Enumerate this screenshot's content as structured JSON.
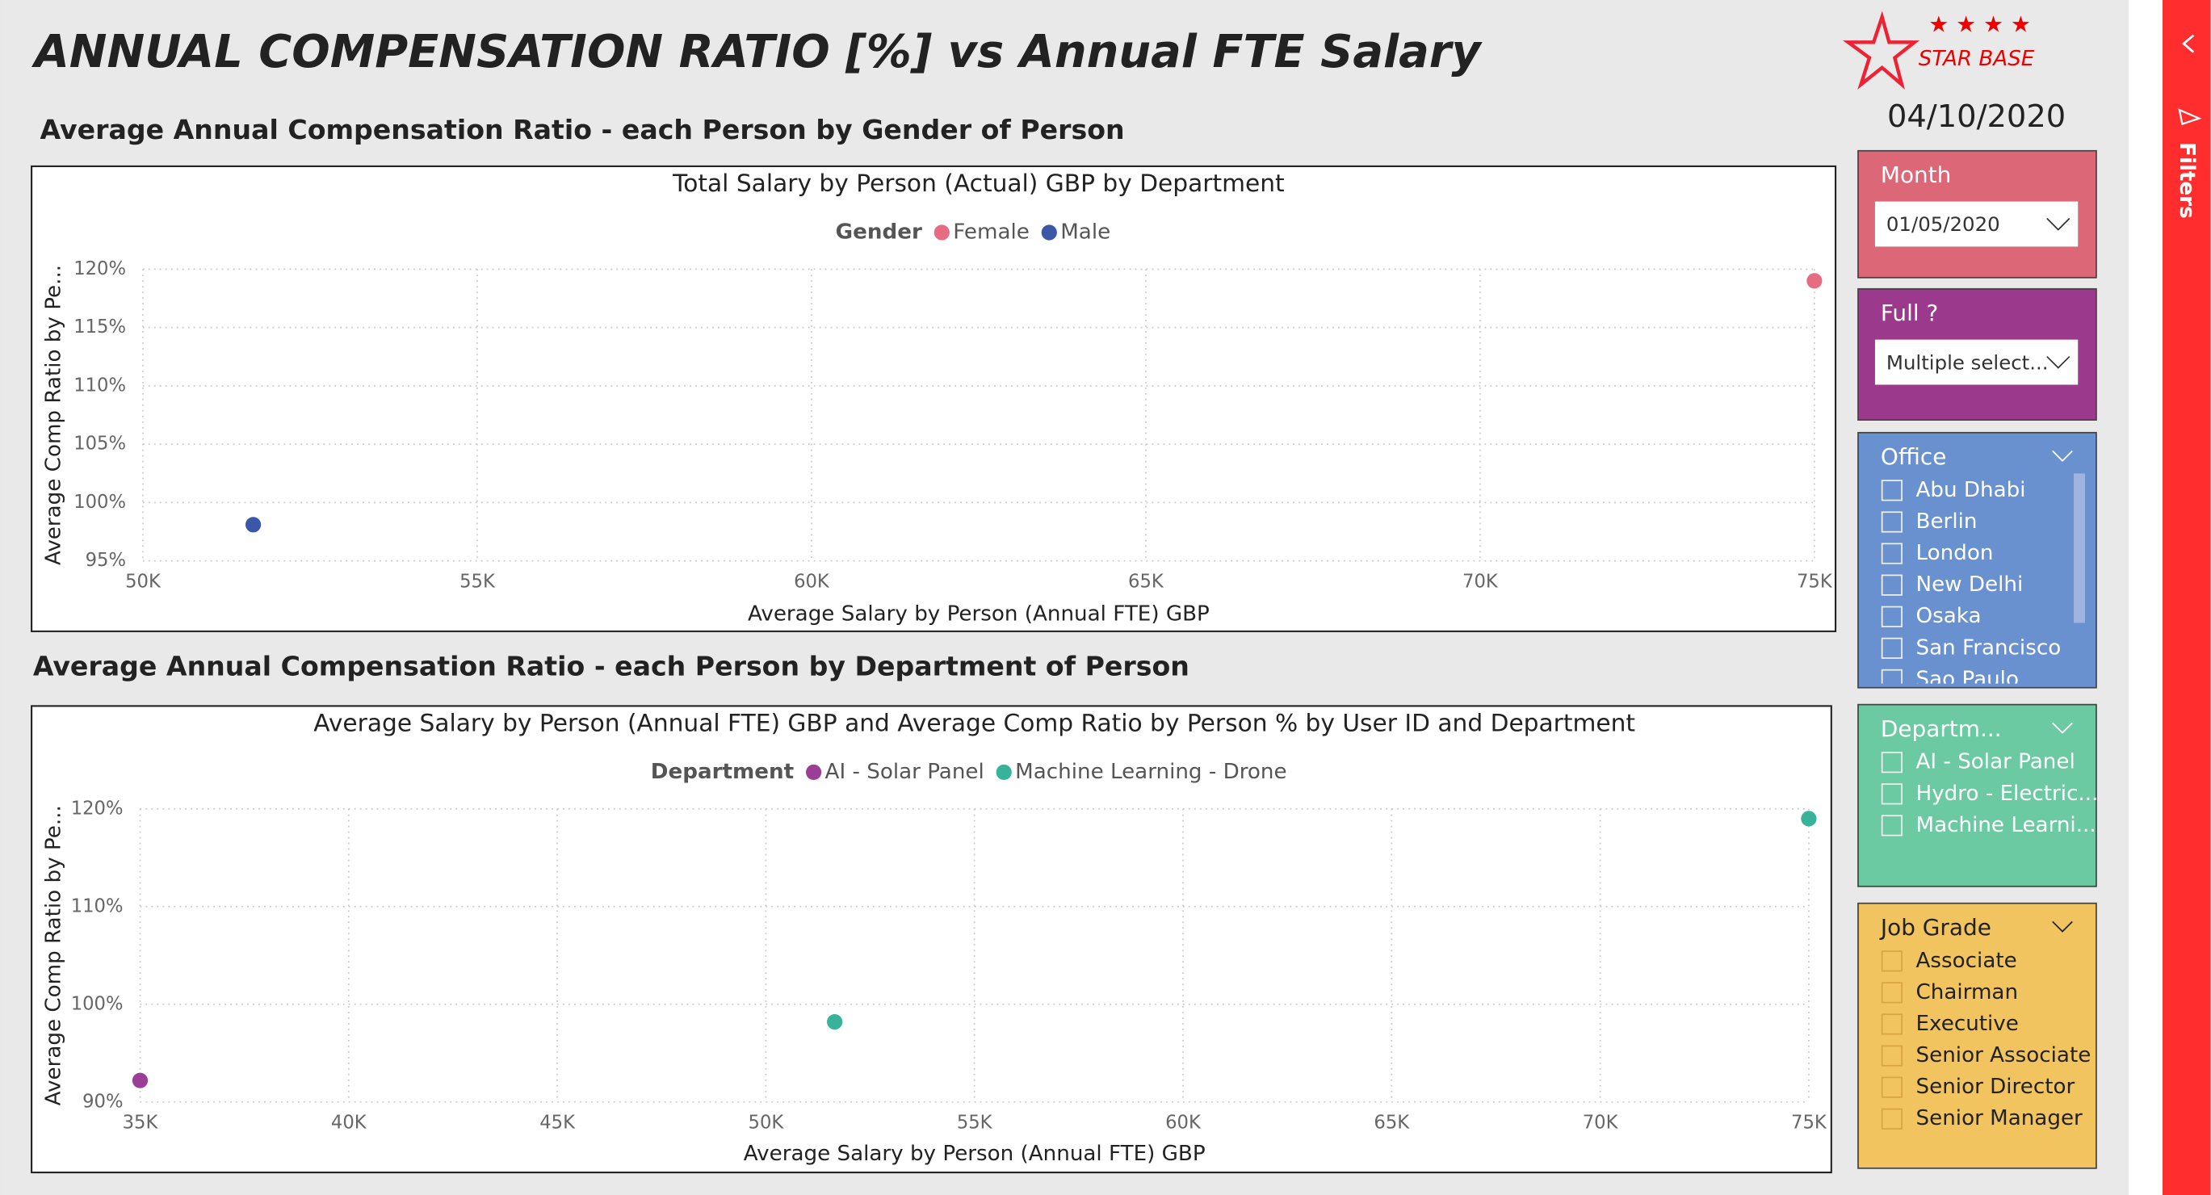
{
  "header": {
    "title": "ANNUAL COMPENSATION RATIO [%] vs Annual FTE Salary",
    "logo": "STAR BASE",
    "date": "04/10/2020"
  },
  "section_titles": [
    "Average Annual Compensation Ratio - each Person by Gender of Person",
    "Average Annual Compensation Ratio - each Person by Department of Person"
  ],
  "chart_data": [
    {
      "type": "scatter",
      "title": "Total Salary by Person (Actual) GBP by Department",
      "legend_title": "Gender",
      "x_label": "Average Salary by Person (Annual FTE) GBP",
      "y_label": "Average Comp Ratio by Pe...",
      "xlim": [
        50000,
        75000
      ],
      "xticks": [
        {
          "value": 50000,
          "label": "50K"
        },
        {
          "value": 55000,
          "label": "55K"
        },
        {
          "value": 60000,
          "label": "60K"
        },
        {
          "value": 65000,
          "label": "65K"
        },
        {
          "value": 70000,
          "label": "70K"
        },
        {
          "value": 75000,
          "label": "75K"
        }
      ],
      "ylim": [
        95,
        120
      ],
      "yticks": [
        {
          "value": 95,
          "label": "95%"
        },
        {
          "value": 100,
          "label": "100%"
        },
        {
          "value": 105,
          "label": "105%"
        },
        {
          "value": 110,
          "label": "110%"
        },
        {
          "value": 115,
          "label": "115%"
        },
        {
          "value": 120,
          "label": "120%"
        }
      ],
      "grid": true,
      "series": [
        {
          "name": "Female",
          "color": "#e66c82",
          "x": [
            75000
          ],
          "values": [
            119
          ]
        },
        {
          "name": "Male",
          "color": "#3a57a8",
          "x": [
            51650
          ],
          "values": [
            98.1
          ]
        }
      ]
    },
    {
      "type": "scatter",
      "title": "Average Salary by Person (Annual FTE) GBP and Average Comp Ratio by Person % by User ID and Department",
      "legend_title": "Department",
      "x_label": "Average Salary by Person (Annual FTE) GBP",
      "y_label": "Average Comp Ratio by Pe...",
      "xlim": [
        35000,
        75000
      ],
      "xticks": [
        {
          "value": 35000,
          "label": "35K"
        },
        {
          "value": 40000,
          "label": "40K"
        },
        {
          "value": 45000,
          "label": "45K"
        },
        {
          "value": 50000,
          "label": "50K"
        },
        {
          "value": 55000,
          "label": "55K"
        },
        {
          "value": 60000,
          "label": "60K"
        },
        {
          "value": 65000,
          "label": "65K"
        },
        {
          "value": 70000,
          "label": "70K"
        },
        {
          "value": 75000,
          "label": "75K"
        }
      ],
      "ylim": [
        90,
        120
      ],
      "yticks": [
        {
          "value": 90,
          "label": "90%"
        },
        {
          "value": 100,
          "label": "100%"
        },
        {
          "value": 110,
          "label": "110%"
        },
        {
          "value": 120,
          "label": "120%"
        }
      ],
      "grid": true,
      "series": [
        {
          "name": "AI - Solar Panel",
          "color": "#9b3f96",
          "x": [
            35000
          ],
          "values": [
            92.2
          ]
        },
        {
          "name": "Machine Learning - Drone",
          "color": "#37b39a",
          "x": [
            51650,
            75000
          ],
          "values": [
            98.2,
            119
          ]
        }
      ]
    }
  ],
  "slicers": [
    {
      "title": "Month",
      "value": "01/05/2020",
      "color": "#dc6877"
    },
    {
      "title": "Full ?",
      "value": "Multiple select...",
      "color": "#9b3a8c"
    },
    {
      "title": "Office",
      "items": [
        "Abu Dhabi",
        "Berlin",
        "London",
        "New Delhi",
        "Osaka",
        "San Francisco",
        "Sao Paulo"
      ],
      "color": "#6a91cf"
    },
    {
      "title": "Departm...",
      "items": [
        "AI - Solar Panel",
        "Hydro - Electric...",
        "Machine Learni..."
      ],
      "color": "#6ccaa3"
    },
    {
      "title": "Job Grade",
      "items": [
        "Associate",
        "Chairman",
        "Executive",
        "Senior Associate",
        "Senior Director",
        "Senior Manager"
      ],
      "color": "#f2c460"
    }
  ],
  "filters_label": "Filters"
}
